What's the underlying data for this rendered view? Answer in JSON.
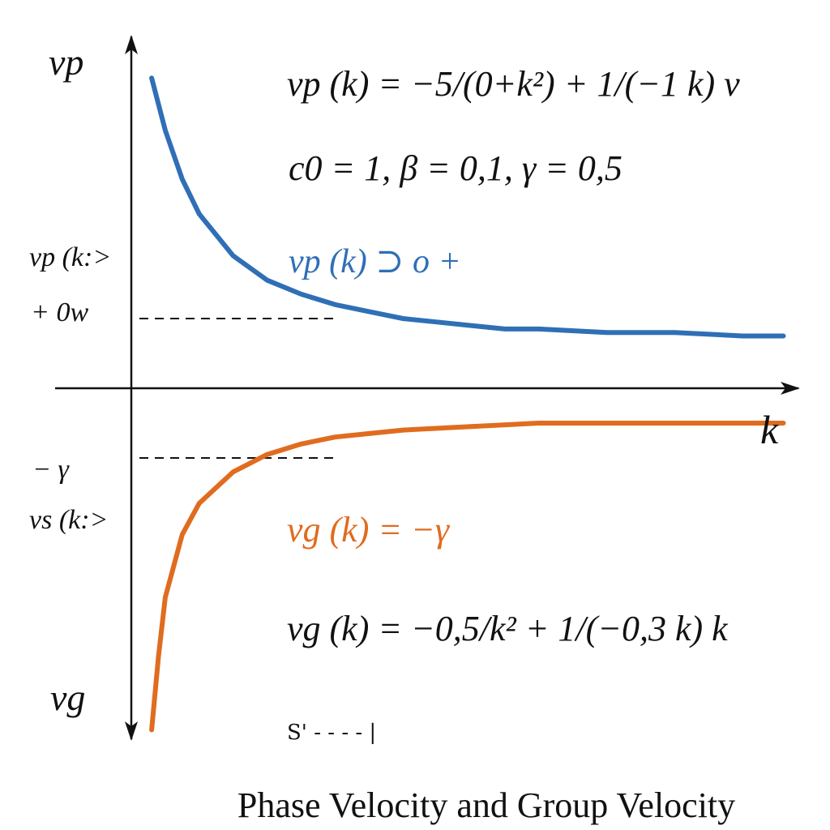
{
  "title": "Phase Velocity and Group Velocity",
  "colors": {
    "phase": "#2f6fb6",
    "group": "#e06c1f",
    "axis": "#111111"
  },
  "chart_data": {
    "type": "line",
    "xlabel": "k",
    "ylabel_top": "vp",
    "ylabel_bottom": "vg",
    "xlim": [
      0,
      10
    ],
    "ylim": [
      -1,
      1
    ],
    "grid": false,
    "series": [
      {
        "name": "vp(k) → 0+",
        "x": [
          0.3,
          0.5,
          0.75,
          1,
          1.5,
          2,
          2.5,
          3,
          3.5,
          4,
          4.5,
          5,
          5.5,
          6,
          7,
          8,
          9,
          9.6
        ],
        "y": [
          0.89,
          0.74,
          0.6,
          0.5,
          0.38,
          0.31,
          0.27,
          0.24,
          0.22,
          0.2,
          0.19,
          0.18,
          0.17,
          0.17,
          0.16,
          0.16,
          0.15,
          0.15
        ]
      },
      {
        "name": "vg(k) = −γ",
        "x": [
          0.3,
          0.4,
          0.5,
          0.75,
          1,
          1.5,
          2,
          2.5,
          3,
          3.5,
          4,
          5,
          6,
          7,
          8,
          9.6
        ],
        "y": [
          -0.98,
          -0.77,
          -0.6,
          -0.42,
          -0.33,
          -0.24,
          -0.19,
          -0.16,
          -0.14,
          -0.13,
          -0.12,
          -0.11,
          -0.1,
          -0.1,
          -0.1,
          -0.1
        ]
      }
    ],
    "reference_lines": [
      {
        "label": "vp(k:> + 0w",
        "y": 0.2,
        "x_to": 3.0
      },
      {
        "label": "−γ vg(k:>",
        "y": -0.2,
        "x_to": 3.0
      }
    ],
    "annotations": {
      "vp_formula": "vp (k) = −5/(0+k²) + 1/(−1 k) v",
      "params": "c0 = 1, β = 0,1, γ = 0,5",
      "vp_limit": "vp (k) ⊃ o +",
      "vg_limit": "vg (k) = −γ",
      "vg_formula": "vg (k) = −0,5/k² + 1/(−0,3 k) k",
      "left_top_1": "vp (k:>",
      "left_top_2": "+ 0w",
      "left_bottom_1": "− γ",
      "left_bottom_2": "vs (k:>",
      "bottom_mark": "S' - - - - |"
    }
  }
}
